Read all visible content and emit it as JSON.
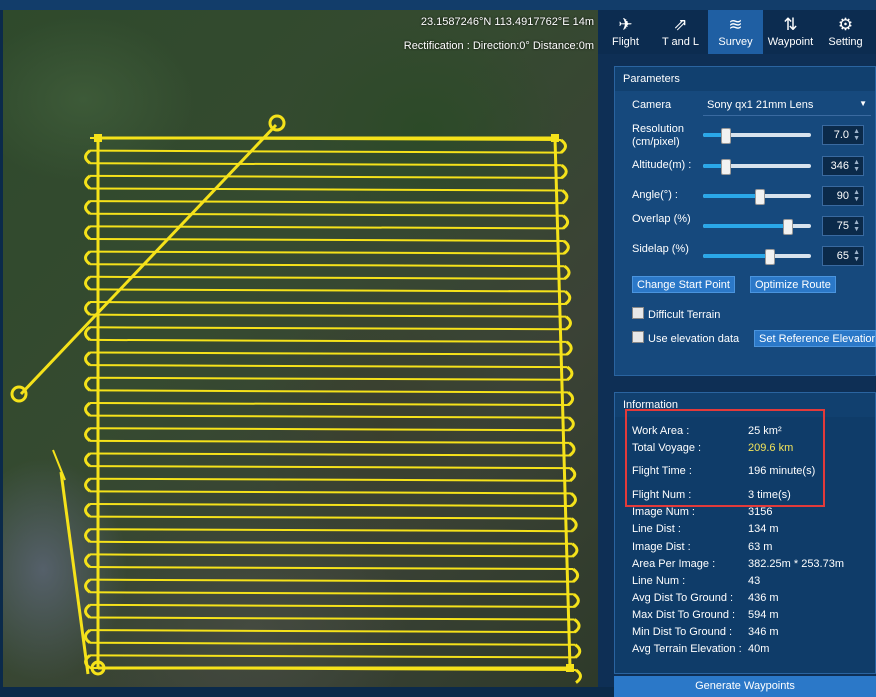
{
  "map": {
    "coordinate": "23.1587246°N 113.4917762°E 14m",
    "rectification": "Rectification : Direction:0° Distance:0m",
    "route_color": "#f5e21a"
  },
  "tabs": [
    {
      "label": "Flight",
      "icon": "aircraft-icon"
    },
    {
      "label": "T and L",
      "icon": "takeoff-landing-icon"
    },
    {
      "label": "Survey",
      "icon": "survey-icon",
      "active": true
    },
    {
      "label": "Waypoint",
      "icon": "waypoint-icon"
    },
    {
      "label": "Setting",
      "icon": "gear-icon"
    }
  ],
  "parameters": {
    "title": "Parameters",
    "camera_label": "Camera",
    "camera_value": "Sony qx1 21mm Lens",
    "resolution_label": "Resolution (cm/pixel)",
    "resolution_value": "7.0",
    "resolution_level": 0.2,
    "altitude_label": "Altitude(m) :",
    "altitude_value": "346",
    "altitude_level": 0.2,
    "angle_label": "Angle(°) :",
    "angle_value": "90",
    "angle_level": 0.52,
    "overlap_label": "Overlap (%)",
    "overlap_value": "75",
    "overlap_level": 0.78,
    "sidelap_label": "Sidelap (%)",
    "sidelap_value": "65",
    "sidelap_level": 0.61,
    "change_start": "Change Start Point",
    "optimize_route": "Optimize Route",
    "difficult_terrain": "Difficult Terrain",
    "use_elevation": "Use elevation data",
    "set_reference": "Set Reference Elevation"
  },
  "information": {
    "title": "Information",
    "work_area_label": "Work Area :",
    "work_area": "25 km²",
    "total_voyage_label": "Total Voyage :",
    "total_voyage": "209.6 km",
    "flight_time_label": "Flight Time :",
    "flight_time": "196 minute(s)",
    "flight_num_label": "Flight Num :",
    "flight_num": "3 time(s)",
    "image_num_label": "Image Num :",
    "image_num": "3156",
    "line_dist_label": "Line Dist :",
    "line_dist": "134 m",
    "image_dist_label": "Image Dist :",
    "image_dist": "63 m",
    "area_per_image_label": "Area Per Image :",
    "area_per_image": "382.25m * 253.73m",
    "line_num_label": "Line Num :",
    "line_num": "43",
    "avg_dist_label": "Avg Dist To Ground :",
    "avg_dist": "436 m",
    "max_dist_label": "Max Dist To Ground :",
    "max_dist": "594 m",
    "min_dist_label": "Min Dist To Ground :",
    "min_dist": "346 m",
    "avg_elev_label": "Avg Terrain Elevation :",
    "avg_elev": "40m"
  },
  "generate_button": "Generate Waypoints"
}
